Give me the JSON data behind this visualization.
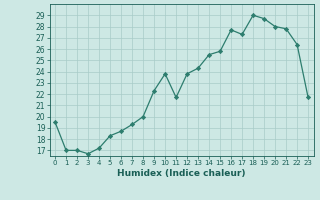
{
  "x": [
    0,
    1,
    2,
    3,
    4,
    5,
    6,
    7,
    8,
    9,
    10,
    11,
    12,
    13,
    14,
    15,
    16,
    17,
    18,
    19,
    20,
    21,
    22,
    23
  ],
  "y": [
    19.5,
    17.0,
    17.0,
    16.7,
    17.2,
    18.3,
    18.7,
    19.3,
    20.0,
    22.3,
    23.8,
    21.7,
    23.8,
    24.3,
    25.5,
    25.8,
    27.7,
    27.3,
    29.0,
    28.7,
    28.0,
    27.8,
    26.4,
    21.7
  ],
  "xlabel": "Humidex (Indice chaleur)",
  "xlim": [
    -0.5,
    23.5
  ],
  "ylim": [
    16.5,
    30.0
  ],
  "yticks": [
    17,
    18,
    19,
    20,
    21,
    22,
    23,
    24,
    25,
    26,
    27,
    28,
    29
  ],
  "xticks": [
    0,
    1,
    2,
    3,
    4,
    5,
    6,
    7,
    8,
    9,
    10,
    11,
    12,
    13,
    14,
    15,
    16,
    17,
    18,
    19,
    20,
    21,
    22,
    23
  ],
  "line_color": "#2d7d6e",
  "marker_color": "#2d7d6e",
  "bg_color": "#cde8e4",
  "grid_color": "#a8ccc8",
  "label_color": "#1a5f56",
  "tick_color": "#1a5f56"
}
